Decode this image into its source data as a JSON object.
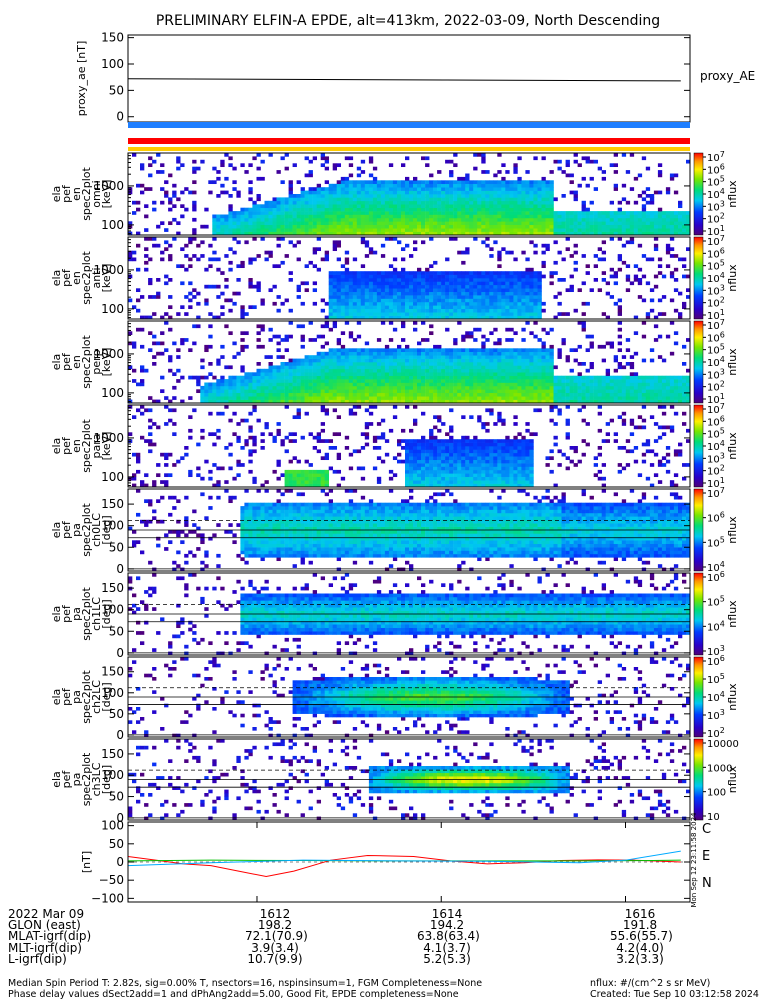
{
  "title": "PRELIMINARY ELFIN-A EPDE, alt=413km, 2022-03-09, North Descending",
  "chart_data": [
    {
      "type": "line",
      "id": "proxy_ae",
      "ylabel": "proxy_ae [nT]",
      "legend": "proxy_AE",
      "ylim": [
        -10,
        155
      ],
      "yticks": [
        "150",
        "100",
        "50",
        "0"
      ],
      "x": [
        1610.6,
        1616.6
      ],
      "values": [
        72,
        68
      ]
    },
    {
      "type": "heatmap",
      "id": "en_omni",
      "ylabel": "ela pef en spec2plot omni [keV]",
      "yticks": [
        "1000",
        "100"
      ],
      "yscale": "log",
      "ylim": [
        55,
        7000
      ],
      "cbar_ticks": [
        "10^7",
        "10^6",
        "10^5",
        "10^4",
        "10^3",
        "10^2",
        "10^1"
      ],
      "cbar_label": "nflux"
    },
    {
      "type": "heatmap",
      "id": "en_anti",
      "ylabel": "ela pef en spec2plot anti [keV]",
      "yticks": [
        "1000",
        "100"
      ],
      "yscale": "log",
      "ylim": [
        55,
        7000
      ],
      "cbar_ticks": [
        "10^7",
        "10^6",
        "10^5",
        "10^4",
        "10^3",
        "10^2",
        "10^1"
      ],
      "cbar_label": "nflux"
    },
    {
      "type": "heatmap",
      "id": "en_perp",
      "ylabel": "ela pef en spec2plot perp [keV]",
      "yticks": [
        "1000",
        "100"
      ],
      "yscale": "log",
      "ylim": [
        55,
        7000
      ],
      "cbar_ticks": [
        "10^7",
        "10^6",
        "10^5",
        "10^4",
        "10^3",
        "10^2",
        "10^1"
      ],
      "cbar_label": "nflux"
    },
    {
      "type": "heatmap",
      "id": "en_para",
      "ylabel": "ela pef en spec2plot para [keV]",
      "yticks": [
        "1000",
        "100"
      ],
      "yscale": "log",
      "ylim": [
        55,
        7000
      ],
      "cbar_ticks": [
        "10^7",
        "10^6",
        "10^5",
        "10^4",
        "10^3",
        "10^2",
        "10^1"
      ],
      "cbar_label": "nflux"
    },
    {
      "type": "heatmap",
      "id": "pa_ch0",
      "ylabel": "ela pef pa spec2plot ch0LC [deg]",
      "yticks": [
        "150",
        "100",
        "50",
        "0"
      ],
      "ylim": [
        -5,
        185
      ],
      "cbar_ticks": [
        "10^7",
        "10^6",
        "10^5",
        "10^4"
      ],
      "cbar_label": "nflux"
    },
    {
      "type": "heatmap",
      "id": "pa_ch1",
      "ylabel": "ela pef pa spec2plot ch1LC [deg]",
      "yticks": [
        "150",
        "100",
        "50",
        "0"
      ],
      "ylim": [
        -5,
        185
      ],
      "cbar_ticks": [
        "10^6",
        "10^5",
        "10^4",
        "10^3"
      ],
      "cbar_label": "nflux"
    },
    {
      "type": "heatmap",
      "id": "pa_ch2",
      "ylabel": "ela pef pa spec2plot ch2LC [deg]",
      "yticks": [
        "150",
        "100",
        "50",
        "0"
      ],
      "ylim": [
        -5,
        185
      ],
      "cbar_ticks": [
        "10^6",
        "10^5",
        "10^4",
        "10^3",
        "10^2"
      ],
      "cbar_label": "nflux"
    },
    {
      "type": "heatmap",
      "id": "pa_ch3",
      "ylabel": "ela pef pa spec2plot ch3LC [deg]",
      "yticks": [
        "150",
        "100",
        "50",
        "0"
      ],
      "ylim": [
        -5,
        185
      ],
      "cbar_ticks": [
        "10000",
        "1000",
        "100",
        "10"
      ],
      "cbar_label": "nflux"
    },
    {
      "type": "line",
      "id": "bfield",
      "ylabel": "[nT]",
      "ylim": [
        -110,
        110
      ],
      "yticks": [
        "100",
        "50",
        "0",
        "−50",
        "−100"
      ],
      "legend": [
        "C",
        "E",
        "N"
      ],
      "series": [
        {
          "name": "E",
          "color": "#ff0000",
          "x": [
            1610.6,
            1610.9,
            1611.2,
            1611.5,
            1611.8,
            1612.1,
            1612.4,
            1612.8,
            1613.2,
            1613.7,
            1614.1,
            1614.5,
            1614.9,
            1615.3,
            1615.7,
            1616.1,
            1616.4,
            1616.6
          ],
          "values": [
            15,
            5,
            -5,
            -10,
            -25,
            -40,
            -25,
            5,
            18,
            15,
            3,
            -5,
            -2,
            4,
            6,
            5,
            2,
            0
          ]
        },
        {
          "name": "N",
          "color": "#00c000",
          "x": [
            1610.6,
            1611.5,
            1612.5,
            1613.5,
            1614.5,
            1615.5,
            1616.3,
            1616.6
          ],
          "values": [
            3,
            5,
            4,
            3,
            3,
            3,
            4,
            5
          ]
        },
        {
          "name": "C",
          "color": "#00aaff",
          "x": [
            1610.6,
            1611.5,
            1612.5,
            1613.5,
            1614.5,
            1615.5,
            1616.0,
            1616.6
          ],
          "values": [
            -10,
            -2,
            5,
            3,
            2,
            -2,
            5,
            30
          ]
        }
      ],
      "side_label": "Mon Sep 12 23:11:58 2024"
    }
  ],
  "bars": {
    "colors": [
      "#1f7fff",
      "#ff0000",
      "#ffcc00"
    ]
  },
  "xaxis": {
    "range": [
      1610.6,
      1616.7
    ],
    "ticks": [
      1612,
      1614,
      1616
    ]
  },
  "footer": {
    "rows": [
      {
        "label": "2022 Mar 09",
        "values": [
          "1612",
          "1614",
          "1616"
        ]
      },
      {
        "label": "GLON (east)",
        "values": [
          "198.2",
          "194.2",
          "191.8"
        ]
      },
      {
        "label": "MLAT-igrf(dip)",
        "values": [
          "72.1(70.9)",
          "63.8(63.4)",
          "55.6(55.7)"
        ]
      },
      {
        "label": "MLT-igrf(dip)",
        "values": [
          "3.9(3.4)",
          "4.1(3.7)",
          "4.2(4.0)"
        ]
      },
      {
        "label": "L-igrf(dip)",
        "values": [
          "10.7(9.9)",
          "5.2(5.3)",
          "3.2(3.3)"
        ]
      }
    ],
    "note1": "Median Spin Period T: 2.82s, sig=0.00% T, nsectors=16, nspinsinsum=1, FGM Completeness=None",
    "note2": "Phase delay values dSect2add=1 and dPhAng2add=5.00, Good Fit, EPDE completeness=None",
    "units": "nflux: #/(cm^2 s sr MeV)",
    "created": "Created: Tue Sep 10 03:12:58 2024"
  }
}
